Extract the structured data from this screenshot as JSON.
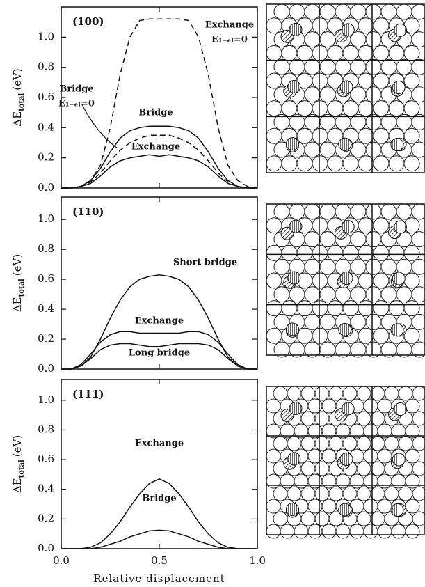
{
  "chart_data": [
    {
      "type": "line",
      "title": "(100)",
      "y_label": "ΔE",
      "y_label_sub": "total",
      "y_label_unit": "(eV)",
      "x": [
        0,
        0.05,
        0.1,
        0.15,
        0.2,
        0.25,
        0.3,
        0.35,
        0.4,
        0.45,
        0.5,
        0.55,
        0.6,
        0.65,
        0.7,
        0.75,
        0.8,
        0.85,
        0.9,
        0.95,
        1.0
      ],
      "xlim": [
        0,
        1.0
      ],
      "ylim": [
        0,
        1.2
      ],
      "yticks": [
        {
          "value": 0,
          "label": "0.0"
        },
        {
          "value": 0.2,
          "label": "0.2"
        },
        {
          "value": 0.4,
          "label": "0.4"
        },
        {
          "value": 0.6,
          "label": "0.6"
        },
        {
          "value": 0.8,
          "label": "0.8"
        },
        {
          "value": 1.0,
          "label": "1.0"
        }
      ],
      "xticks": [
        0,
        0.5,
        1.0
      ],
      "series": [
        {
          "name": "Exchange",
          "condition": "E₁₋ₑₗ=0",
          "color": "#111",
          "dash": true,
          "values": [
            0,
            0,
            0.01,
            0.05,
            0.15,
            0.4,
            0.75,
            1.0,
            1.11,
            1.12,
            1.12,
            1.12,
            1.12,
            1.11,
            1.0,
            0.75,
            0.4,
            0.15,
            0.05,
            0.01,
            0
          ]
        },
        {
          "name": "Bridge",
          "condition": "E₁₋ₑₗ=0",
          "color": "#111",
          "dash": true,
          "values": [
            0,
            0,
            0.01,
            0.04,
            0.1,
            0.18,
            0.25,
            0.3,
            0.33,
            0.35,
            0.35,
            0.35,
            0.33,
            0.3,
            0.25,
            0.18,
            0.1,
            0.04,
            0.01,
            0,
            0
          ]
        },
        {
          "name": "Bridge",
          "color": "#111",
          "dash": false,
          "values": [
            0,
            0,
            0.01,
            0.05,
            0.13,
            0.24,
            0.33,
            0.38,
            0.4,
            0.41,
            0.41,
            0.41,
            0.4,
            0.38,
            0.33,
            0.24,
            0.13,
            0.05,
            0.01,
            0,
            0
          ]
        },
        {
          "name": "Exchange",
          "color": "#111",
          "dash": false,
          "values": [
            0,
            0,
            0.01,
            0.03,
            0.08,
            0.14,
            0.18,
            0.2,
            0.21,
            0.22,
            0.21,
            0.22,
            0.21,
            0.2,
            0.18,
            0.14,
            0.08,
            0.03,
            0.01,
            0,
            0
          ]
        }
      ]
    },
    {
      "type": "line",
      "title": "(110)",
      "y_label": "ΔE",
      "y_label_sub": "total",
      "y_label_unit": "(eV)",
      "x": [
        0,
        0.05,
        0.1,
        0.15,
        0.2,
        0.25,
        0.3,
        0.35,
        0.4,
        0.45,
        0.5,
        0.55,
        0.6,
        0.65,
        0.7,
        0.75,
        0.8,
        0.85,
        0.9,
        0.95,
        1.0
      ],
      "xlim": [
        0,
        1.0
      ],
      "ylim": [
        0,
        1.15
      ],
      "yticks": [
        {
          "value": 0,
          "label": "0.0"
        },
        {
          "value": 0.2,
          "label": "0.2"
        },
        {
          "value": 0.4,
          "label": "0.4"
        },
        {
          "value": 0.6,
          "label": "0.6"
        },
        {
          "value": 0.8,
          "label": "0.8"
        },
        {
          "value": 1.0,
          "label": "1.0"
        }
      ],
      "xticks": [
        0,
        0.5,
        1.0
      ],
      "series": [
        {
          "name": "Short bridge",
          "color": "#111",
          "dash": false,
          "values": [
            0,
            0,
            0.02,
            0.08,
            0.2,
            0.34,
            0.46,
            0.55,
            0.6,
            0.62,
            0.63,
            0.62,
            0.6,
            0.55,
            0.46,
            0.34,
            0.2,
            0.08,
            0.02,
            0,
            0
          ]
        },
        {
          "name": "Exchange",
          "color": "#111",
          "dash": false,
          "values": [
            0,
            0,
            0.03,
            0.1,
            0.18,
            0.23,
            0.25,
            0.25,
            0.24,
            0.24,
            0.24,
            0.24,
            0.24,
            0.25,
            0.25,
            0.23,
            0.18,
            0.1,
            0.03,
            0,
            0
          ]
        },
        {
          "name": "Long bridge",
          "color": "#111",
          "dash": false,
          "values": [
            0,
            0,
            0.02,
            0.07,
            0.13,
            0.16,
            0.17,
            0.17,
            0.16,
            0.15,
            0.15,
            0.16,
            0.17,
            0.17,
            0.17,
            0.16,
            0.13,
            0.07,
            0.02,
            0,
            0
          ]
        }
      ]
    },
    {
      "type": "line",
      "title": "(111)",
      "y_label": "ΔE",
      "y_label_sub": "total",
      "y_label_unit": "(eV)",
      "x_label": "Relative displacement",
      "x": [
        0,
        0.05,
        0.1,
        0.15,
        0.2,
        0.25,
        0.3,
        0.35,
        0.4,
        0.45,
        0.5,
        0.55,
        0.6,
        0.65,
        0.7,
        0.75,
        0.8,
        0.85,
        0.9,
        0.95,
        1.0
      ],
      "xlim": [
        0,
        1.0
      ],
      "ylim": [
        0,
        1.14
      ],
      "yticks": [
        {
          "value": 0,
          "label": "0.0"
        },
        {
          "value": 0.2,
          "label": "0.2"
        },
        {
          "value": 0.4,
          "label": "0.4"
        },
        {
          "value": 0.6,
          "label": "0.6"
        },
        {
          "value": 0.8,
          "label": "0.8"
        },
        {
          "value": 1.0,
          "label": "1.0"
        }
      ],
      "xticks": [
        {
          "value": 0,
          "label": "0.0"
        },
        {
          "value": 0.5,
          "label": "0.5"
        },
        {
          "value": 1.0,
          "label": "1.0"
        }
      ],
      "series": [
        {
          "name": "Exchange",
          "color": "#111",
          "dash": false,
          "values": [
            0,
            0,
            0,
            0.01,
            0.04,
            0.1,
            0.18,
            0.28,
            0.37,
            0.44,
            0.47,
            0.44,
            0.37,
            0.28,
            0.18,
            0.1,
            0.04,
            0.01,
            0,
            0,
            0
          ]
        },
        {
          "name": "Bridge",
          "color": "#111",
          "dash": false,
          "values": [
            0,
            0,
            0,
            0,
            0.01,
            0.03,
            0.05,
            0.08,
            0.1,
            0.12,
            0.125,
            0.12,
            0.1,
            0.08,
            0.05,
            0.03,
            0.01,
            0,
            0,
            0,
            0
          ]
        }
      ]
    }
  ]
}
